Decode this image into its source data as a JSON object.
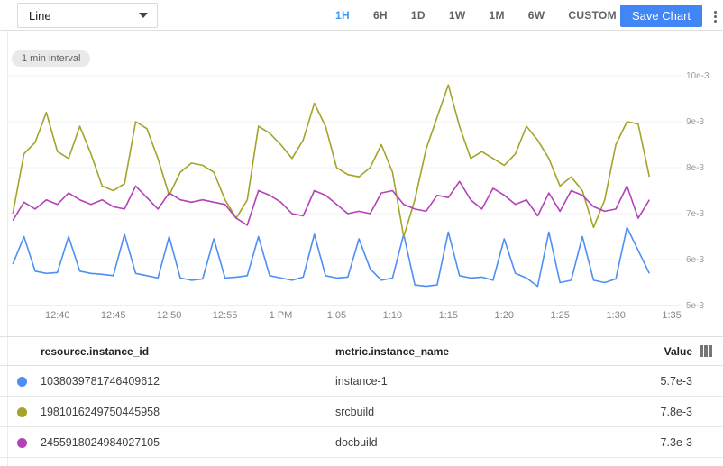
{
  "toolbar": {
    "chart_type": "Line",
    "time_ranges": [
      "1H",
      "6H",
      "1D",
      "1W",
      "1M",
      "6W",
      "CUSTOM"
    ],
    "active_range": "1H",
    "save_label": "Save Chart",
    "active_color": "#3d9df6",
    "save_button_color": "#4285f4"
  },
  "chart": {
    "interval_badge": "1 min interval"
  },
  "chart_data": {
    "type": "line",
    "title": "",
    "xlabel": "",
    "ylabel": "",
    "x_start_time": "12:36 PM",
    "x_interval_minutes": 1,
    "x_tick_labels": [
      "12:40",
      "12:45",
      "12:50",
      "12:55",
      "1 PM",
      "1:05",
      "1:10",
      "1:15",
      "1:20",
      "1:25",
      "1:30",
      "1:35"
    ],
    "x_tick_offsets": [
      4,
      9,
      14,
      19,
      24,
      29,
      34,
      39,
      44,
      49,
      54,
      59
    ],
    "x_domain": [
      -0.5,
      59.8
    ],
    "y_tick_labels": [
      "10e-3",
      "9e-3",
      "8e-3",
      "7e-3",
      "6e-3",
      "5e-3"
    ],
    "y_tick_values_e3": [
      10,
      9,
      8,
      7,
      6,
      5
    ],
    "ylim_e3": [
      5,
      10
    ],
    "grid": "horizontal-only",
    "legend_position": "table-below",
    "series": [
      {
        "name": "instance-1",
        "color": "#4d8ff5",
        "values_e3": [
          5.9,
          6.5,
          5.75,
          5.7,
          5.72,
          6.5,
          5.75,
          5.7,
          5.68,
          5.65,
          6.55,
          5.7,
          5.65,
          5.6,
          6.5,
          5.6,
          5.55,
          5.58,
          6.45,
          5.6,
          5.62,
          5.65,
          6.5,
          5.65,
          5.6,
          5.55,
          5.62,
          6.55,
          5.65,
          5.6,
          5.62,
          6.45,
          5.8,
          5.55,
          5.6,
          6.55,
          5.45,
          5.42,
          5.45,
          6.6,
          5.65,
          5.6,
          5.62,
          5.55,
          6.45,
          5.7,
          5.6,
          5.42,
          6.6,
          5.5,
          5.55,
          6.5,
          5.55,
          5.5,
          5.58,
          6.7,
          6.2,
          5.7
        ]
      },
      {
        "name": "srcbuild",
        "color": "#a4a32a",
        "values_e3": [
          7.0,
          8.3,
          8.55,
          9.2,
          8.35,
          8.2,
          8.9,
          8.3,
          7.6,
          7.5,
          7.65,
          9.0,
          8.85,
          8.2,
          7.4,
          7.9,
          8.1,
          8.05,
          7.9,
          7.3,
          6.9,
          7.3,
          8.9,
          8.75,
          8.5,
          8.2,
          8.6,
          9.4,
          8.9,
          8.0,
          7.85,
          7.8,
          8.0,
          8.5,
          7.9,
          6.5,
          7.3,
          8.4,
          9.1,
          9.8,
          8.9,
          8.2,
          8.35,
          8.2,
          8.05,
          8.3,
          8.9,
          8.6,
          8.2,
          7.6,
          7.8,
          7.5,
          6.7,
          7.3,
          8.5,
          9.0,
          8.95,
          7.8
        ]
      },
      {
        "name": "docbuild",
        "color": "#b441b8",
        "values_e3": [
          6.85,
          7.25,
          7.1,
          7.3,
          7.2,
          7.45,
          7.3,
          7.2,
          7.3,
          7.15,
          7.1,
          7.6,
          7.35,
          7.1,
          7.45,
          7.3,
          7.25,
          7.3,
          7.25,
          7.2,
          6.9,
          6.75,
          7.5,
          7.4,
          7.25,
          7.0,
          6.95,
          7.5,
          7.4,
          7.2,
          7.0,
          7.05,
          7.0,
          7.45,
          7.5,
          7.2,
          7.1,
          7.05,
          7.4,
          7.35,
          7.7,
          7.3,
          7.1,
          7.55,
          7.4,
          7.2,
          7.3,
          6.95,
          7.45,
          7.05,
          7.5,
          7.4,
          7.15,
          7.05,
          7.1,
          7.6,
          6.9,
          7.3
        ]
      }
    ]
  },
  "table": {
    "columns": [
      "resource.instance_id",
      "metric.instance_name",
      "Value"
    ],
    "rows": [
      {
        "color": "#4d8ff5",
        "instance_id": "1038039781746409612",
        "instance_name": "instance-1",
        "value": "5.7e-3"
      },
      {
        "color": "#a4a32a",
        "instance_id": "1981016249750445958",
        "instance_name": "srcbuild",
        "value": "7.8e-3"
      },
      {
        "color": "#b441b8",
        "instance_id": "2455918024984027105",
        "instance_name": "docbuild",
        "value": "7.3e-3"
      }
    ]
  }
}
